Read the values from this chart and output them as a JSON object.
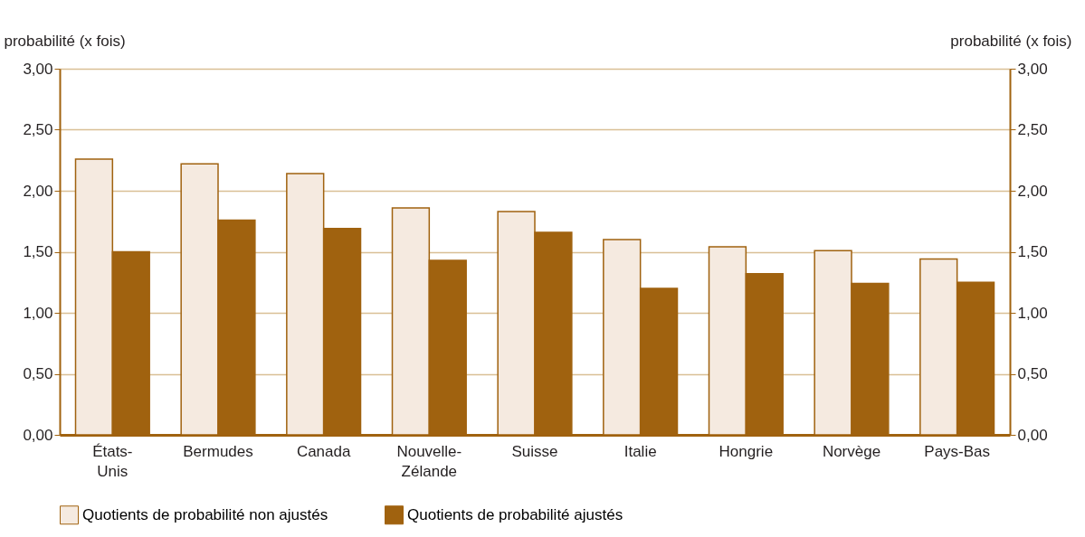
{
  "chart_data": {
    "type": "bar",
    "ylabel": "probabilité (x fois)",
    "y2label": "probabilité (x fois)",
    "categories": [
      "États-\nUnis",
      "Bermudes",
      "Canada",
      "Nouvelle-\nZélande",
      "Suisse",
      "Italie",
      "Hongrie",
      "Norvège",
      "Pays-Bas"
    ],
    "series": [
      {
        "name": "Quotients de probabilité non ajustés",
        "color": "#f5eae0",
        "values": [
          2.26,
          2.22,
          2.14,
          1.86,
          1.83,
          1.6,
          1.54,
          1.51,
          1.44
        ]
      },
      {
        "name": "Quotients de probabilité ajustés",
        "color": "#a0620f",
        "values": [
          1.5,
          1.76,
          1.69,
          1.43,
          1.66,
          1.2,
          1.32,
          1.24,
          1.25
        ]
      }
    ],
    "ylim": [
      0,
      3
    ],
    "yticks": [
      {
        "value": 0,
        "label": "0,00"
      },
      {
        "value": 0.5,
        "label": "0,50"
      },
      {
        "value": 1,
        "label": "1,00"
      },
      {
        "value": 1.5,
        "label": "1,50"
      },
      {
        "value": 2,
        "label": "2,00"
      },
      {
        "value": 2.5,
        "label": "2,50"
      },
      {
        "value": 3,
        "label": "3,00"
      }
    ],
    "y2lim": [
      0,
      3
    ],
    "y2ticks": [
      {
        "value": 0,
        "label": "0,00"
      },
      {
        "value": 0.5,
        "label": "0,50"
      },
      {
        "value": 1,
        "label": "1,00"
      },
      {
        "value": 1.5,
        "label": "1,50"
      },
      {
        "value": 2,
        "label": "2,00"
      },
      {
        "value": 2.5,
        "label": "2,50"
      },
      {
        "value": 3,
        "label": "3,00"
      }
    ],
    "grid": "y",
    "legend": "bottom"
  }
}
